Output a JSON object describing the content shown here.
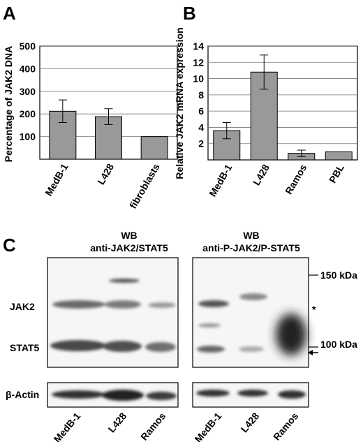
{
  "panels": {
    "a": {
      "letter": "A"
    },
    "b": {
      "letter": "B"
    },
    "c": {
      "letter": "C"
    }
  },
  "chart_data": [
    {
      "type": "bar",
      "ylabel": "Percentage of JAK2 DNA",
      "categories": [
        "MedB-1",
        "L428",
        "fibroblasts"
      ],
      "values": [
        212,
        188,
        100
      ],
      "errors": [
        50,
        35,
        0
      ],
      "ylim": [
        0,
        500
      ],
      "yticks": [
        "100",
        "200",
        "300",
        "400",
        "500"
      ],
      "ytick_values": [
        100,
        200,
        300,
        400,
        500
      ],
      "grid": true,
      "bar_color": "#999999"
    },
    {
      "type": "bar",
      "ylabel": "Relative JAK2 mRNA expression",
      "categories": [
        "MedB-1",
        "L428",
        "Ramos",
        "PBL"
      ],
      "values": [
        3.6,
        10.8,
        0.8,
        1.0
      ],
      "errors": [
        1.0,
        2.1,
        0.4,
        0
      ],
      "ylim": [
        0,
        14
      ],
      "yticks": [
        "2",
        "4",
        "6",
        "8",
        "10",
        "12",
        "14"
      ],
      "ytick_values": [
        2,
        4,
        6,
        8,
        10,
        12,
        14
      ],
      "grid": true,
      "bar_color": "#999999"
    }
  ],
  "blots": {
    "left_title_1": "WB",
    "left_title_2": "anti-JAK2/STAT5",
    "right_title_1": "WB",
    "right_title_2": "anti-P-JAK2/P-STAT5",
    "row_labels": [
      "JAK2",
      "STAT5"
    ],
    "actin_label": "β-Actin",
    "markers": [
      "150 kDa",
      "100 kDa"
    ],
    "asterisk": "*",
    "lane_labels_left": [
      "MedB-1",
      "L428",
      "Ramos"
    ],
    "lane_labels_right": [
      "MedB-1",
      "L428",
      "Ramos"
    ]
  }
}
